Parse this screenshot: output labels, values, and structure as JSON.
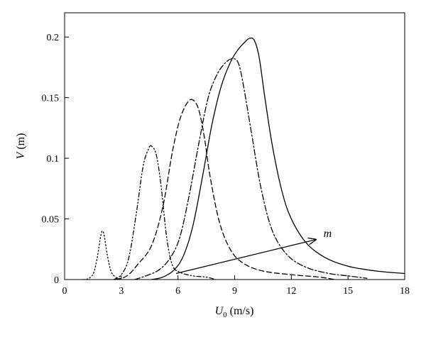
{
  "chart_data": {
    "type": "line",
    "xlabel": {
      "symbol": "U",
      "subscript": "0",
      "unit": " (m/s)"
    },
    "ylabel": {
      "symbol": "V",
      "unit": " (m)"
    },
    "xlim": [
      0,
      18
    ],
    "ylim": [
      0,
      0.22
    ],
    "x_ticks": [
      0,
      3,
      6,
      9,
      12,
      15,
      18
    ],
    "y_ticks": [
      0,
      0.05,
      0.1,
      0.15,
      0.2
    ],
    "y_tick_labels": [
      "0",
      "0.05",
      "0.1",
      "0.15",
      "0.2"
    ],
    "grid": false,
    "legend": "none",
    "series": [
      {
        "style": "dotted",
        "points": [
          [
            1.0,
            0.0
          ],
          [
            1.3,
            0.001
          ],
          [
            1.55,
            0.006
          ],
          [
            1.75,
            0.02
          ],
          [
            1.9,
            0.035
          ],
          [
            2.0,
            0.04
          ],
          [
            2.1,
            0.036
          ],
          [
            2.25,
            0.021
          ],
          [
            2.45,
            0.007
          ],
          [
            2.7,
            0.002
          ],
          [
            3.0,
            0.0
          ]
        ]
      },
      {
        "style": "dash-dot-dot",
        "points": [
          [
            2.6,
            0.0
          ],
          [
            3.0,
            0.004
          ],
          [
            3.4,
            0.018
          ],
          [
            3.8,
            0.055
          ],
          [
            4.15,
            0.093
          ],
          [
            4.45,
            0.108
          ],
          [
            4.6,
            0.11
          ],
          [
            4.85,
            0.103
          ],
          [
            5.1,
            0.078
          ],
          [
            5.4,
            0.035
          ],
          [
            5.7,
            0.012
          ],
          [
            6.1,
            0.006
          ],
          [
            6.8,
            0.003
          ],
          [
            7.5,
            0.002
          ],
          [
            8.0,
            0.0
          ]
        ]
      },
      {
        "style": "dashed",
        "points": [
          [
            2.7,
            0.0
          ],
          [
            3.3,
            0.003
          ],
          [
            3.9,
            0.013
          ],
          [
            4.6,
            0.028
          ],
          [
            5.2,
            0.06
          ],
          [
            5.7,
            0.105
          ],
          [
            6.1,
            0.132
          ],
          [
            6.5,
            0.146
          ],
          [
            6.8,
            0.148
          ],
          [
            7.1,
            0.14
          ],
          [
            7.4,
            0.117
          ],
          [
            7.7,
            0.085
          ],
          [
            8.2,
            0.047
          ],
          [
            8.8,
            0.024
          ],
          [
            9.5,
            0.013
          ],
          [
            10.5,
            0.007
          ],
          [
            12.0,
            0.004
          ],
          [
            13.5,
            0.002
          ],
          [
            14.3,
            0.0
          ]
        ]
      },
      {
        "style": "dash-dot",
        "points": [
          [
            3.7,
            0.0
          ],
          [
            4.3,
            0.003
          ],
          [
            5.0,
            0.008
          ],
          [
            5.6,
            0.018
          ],
          [
            6.1,
            0.035
          ],
          [
            6.6,
            0.07
          ],
          [
            7.1,
            0.112
          ],
          [
            7.6,
            0.15
          ],
          [
            8.1,
            0.17
          ],
          [
            8.6,
            0.18
          ],
          [
            9.0,
            0.182
          ],
          [
            9.25,
            0.176
          ],
          [
            9.5,
            0.157
          ],
          [
            9.9,
            0.12
          ],
          [
            10.4,
            0.075
          ],
          [
            11.0,
            0.04
          ],
          [
            11.8,
            0.02
          ],
          [
            12.8,
            0.01
          ],
          [
            14.0,
            0.005
          ],
          [
            15.0,
            0.003
          ],
          [
            16.0,
            0.001
          ]
        ]
      },
      {
        "style": "solid",
        "points": [
          [
            4.6,
            0.0
          ],
          [
            5.2,
            0.002
          ],
          [
            5.8,
            0.008
          ],
          [
            6.3,
            0.02
          ],
          [
            6.8,
            0.045
          ],
          [
            7.3,
            0.085
          ],
          [
            7.8,
            0.128
          ],
          [
            8.3,
            0.16
          ],
          [
            8.8,
            0.18
          ],
          [
            9.2,
            0.19
          ],
          [
            9.55,
            0.196
          ],
          [
            9.8,
            0.199
          ],
          [
            10.05,
            0.197
          ],
          [
            10.3,
            0.183
          ],
          [
            10.6,
            0.15
          ],
          [
            11.0,
            0.11
          ],
          [
            11.5,
            0.073
          ],
          [
            12.0,
            0.05
          ],
          [
            12.8,
            0.03
          ],
          [
            13.8,
            0.018
          ],
          [
            15.0,
            0.011
          ],
          [
            16.5,
            0.007
          ],
          [
            18.0,
            0.005
          ]
        ]
      }
    ],
    "annotations": [
      {
        "text": "m",
        "arrow_from": [
          5.9,
          0.005
        ],
        "arrow_to": [
          13.3,
          0.033
        ],
        "label_at": [
          13.7,
          0.038
        ]
      }
    ]
  }
}
